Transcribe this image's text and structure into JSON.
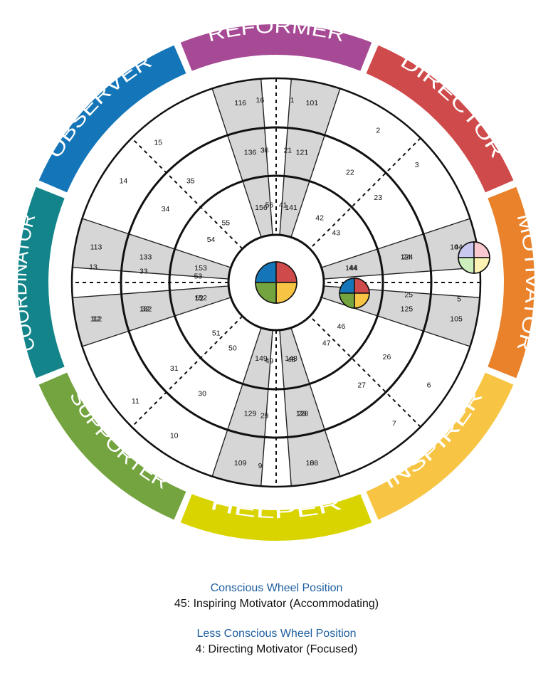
{
  "wheel": {
    "segments": [
      {
        "label": "REFORMER",
        "color": "#a74a96",
        "icon": "reformer-segment"
      },
      {
        "label": "DIRECTOR",
        "color": "#cf4a4a",
        "icon": "director-segment"
      },
      {
        "label": "MOTIVATOR",
        "color": "#e9822b",
        "icon": "motivator-segment"
      },
      {
        "label": "INSPIRER",
        "color": "#f7c543",
        "icon": "inspirer-segment"
      },
      {
        "label": "HELPER",
        "color": "#d9d400",
        "icon": "helper-segment"
      },
      {
        "label": "SUPPORTER",
        "color": "#74a43f",
        "icon": "supporter-segment"
      },
      {
        "label": "COORDINATOR",
        "color": "#13858a",
        "icon": "coordinator-segment"
      },
      {
        "label": "OBSERVER",
        "color": "#1476b8",
        "icon": "observer-segment"
      }
    ],
    "outer_ring_numbers": [
      "1",
      "2",
      "3",
      "4",
      "5",
      "6",
      "7",
      "8",
      "9",
      "10",
      "11",
      "12",
      "13",
      "14",
      "15",
      "16"
    ],
    "ring2_numbers": [
      "21",
      "22",
      "23",
      "24",
      "25",
      "26",
      "27",
      "28",
      "29",
      "30",
      "31",
      "32",
      "33",
      "34",
      "35",
      "36"
    ],
    "ring3_numbers": [
      "41",
      "42",
      "43",
      "44",
      "45",
      "46",
      "47",
      "48",
      "49",
      "50",
      "51",
      "52",
      "53",
      "54",
      "55",
      "56"
    ],
    "band_outer_numbers": [
      "101",
      "104",
      "105",
      "108",
      "109",
      "112",
      "113",
      "116"
    ],
    "band_mid_numbers": [
      "121",
      "124",
      "125",
      "128",
      "129",
      "132",
      "133",
      "136"
    ],
    "band_inner_numbers": [
      "141",
      "144",
      "145",
      "148",
      "149",
      "152",
      "153",
      "156"
    ],
    "center_colors": [
      "#1476b8",
      "#cf4a4a",
      "#f7c543",
      "#74a43f"
    ],
    "conscious_marker": {
      "position": "45",
      "colors": [
        "#1476b8",
        "#cf4a4a",
        "#f7c543",
        "#74a43f"
      ]
    },
    "less_conscious_marker": {
      "position": "4",
      "colors": [
        "#c8c8f0",
        "#f9c9cf",
        "#fbf2b4",
        "#cdeebd"
      ]
    }
  },
  "conscious": {
    "title": "Conscious Wheel Position",
    "value": "45: Inspiring Motivator (Accommodating)"
  },
  "less_conscious": {
    "title": "Less Conscious Wheel Position",
    "value": "4: Directing Motivator (Focused)"
  }
}
